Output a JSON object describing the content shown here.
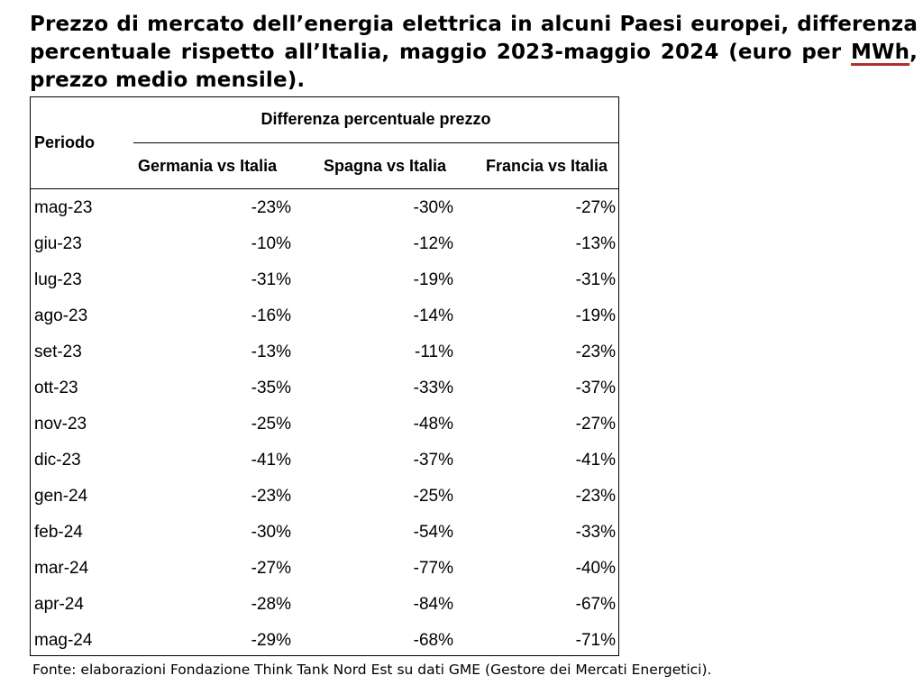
{
  "title": {
    "line_before": "Prezzo di mercato dell’energia elettrica in alcuni Paesi europei, differenza percentuale rispetto all’Italia, maggio 2023-maggio 2024 (euro per ",
    "underlined": "MWh",
    "line_after": ", prezzo medio mensile)."
  },
  "table": {
    "period_header": "Periodo",
    "group_header": "Differenza percentuale prezzo",
    "columns": [
      "Germania vs Italia",
      "Spagna vs Italia",
      "Francia vs Italia"
    ],
    "rows": [
      {
        "period": "mag-23",
        "values": [
          "-23%",
          "-30%",
          "-27%"
        ]
      },
      {
        "period": "giu-23",
        "values": [
          "-10%",
          "-12%",
          "-13%"
        ]
      },
      {
        "period": "lug-23",
        "values": [
          "-31%",
          "-19%",
          "-31%"
        ]
      },
      {
        "period": "ago-23",
        "values": [
          "-16%",
          "-14%",
          "-19%"
        ]
      },
      {
        "period": "set-23",
        "values": [
          "-13%",
          "-11%",
          "-23%"
        ]
      },
      {
        "period": "ott-23",
        "values": [
          "-35%",
          "-33%",
          "-37%"
        ]
      },
      {
        "period": "nov-23",
        "values": [
          "-25%",
          "-48%",
          "-27%"
        ]
      },
      {
        "period": "dic-23",
        "values": [
          "-41%",
          "-37%",
          "-41%"
        ]
      },
      {
        "period": "gen-24",
        "values": [
          "-23%",
          "-25%",
          "-23%"
        ]
      },
      {
        "period": "feb-24",
        "values": [
          "-30%",
          "-54%",
          "-33%"
        ]
      },
      {
        "period": "mar-24",
        "values": [
          "-27%",
          "-77%",
          "-40%"
        ]
      },
      {
        "period": "apr-24",
        "values": [
          "-28%",
          "-84%",
          "-67%"
        ]
      },
      {
        "period": "mag-24",
        "values": [
          "-29%",
          "-68%",
          "-71%"
        ]
      }
    ]
  },
  "source": "Fonte: elaborazioni Fondazione Think Tank Nord Est su dati GME (Gestore dei Mercati Energetici)."
}
